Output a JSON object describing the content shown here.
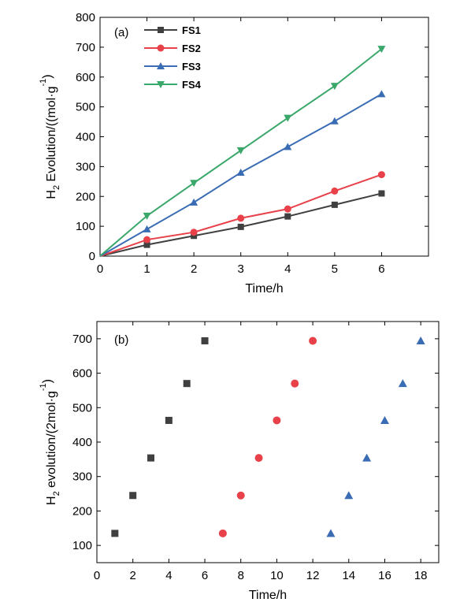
{
  "chart_data": [
    {
      "panel_label": "(a)",
      "type": "line",
      "xlabel": "Time/h",
      "ylabel_prefix": "H",
      "ylabel_sub": "2",
      "ylabel_suffix": " Evolution/((mol·g",
      "ylabel_sup": "-1",
      "ylabel_end": ")",
      "xlim": [
        0,
        7
      ],
      "ylim": [
        0,
        800
      ],
      "xticks": [
        "0",
        "1",
        "2",
        "3",
        "4",
        "5",
        "6"
      ],
      "yticks": [
        "0",
        "100",
        "200",
        "300",
        "400",
        "500",
        "600",
        "700",
        "800"
      ],
      "legend_position": "top-left",
      "x": [
        0,
        1,
        2,
        3,
        4,
        5,
        6
      ],
      "series": [
        {
          "name": "FS1",
          "marker": "square",
          "color": "#404040",
          "values": [
            0,
            38,
            68,
            98,
            133,
            172,
            210
          ]
        },
        {
          "name": "FS2",
          "marker": "circle",
          "color": "#e8414a",
          "values": [
            0,
            55,
            80,
            127,
            158,
            218,
            273
          ]
        },
        {
          "name": "FS3",
          "marker": "triangle-up",
          "color": "#3a6cb4",
          "values": [
            0,
            90,
            180,
            280,
            366,
            452,
            543
          ]
        },
        {
          "name": "FS4",
          "marker": "triangle-down",
          "color": "#3aa86a",
          "values": [
            0,
            135,
            245,
            354,
            463,
            570,
            694
          ]
        }
      ]
    },
    {
      "panel_label": "(b)",
      "type": "scatter",
      "xlabel": "Time/h",
      "ylabel_prefix": "H",
      "ylabel_sub": "2",
      "ylabel_suffix": " evolution/(2mol·g",
      "ylabel_sup": "-1",
      "ylabel_end": ")",
      "xlim": [
        0,
        19
      ],
      "ylim": [
        50,
        750
      ],
      "xticks": [
        "0",
        "2",
        "4",
        "6",
        "8",
        "10",
        "12",
        "14",
        "16",
        "18"
      ],
      "yticks": [
        "100",
        "200",
        "300",
        "400",
        "500",
        "600",
        "700"
      ],
      "series": [
        {
          "marker": "square",
          "color": "#404040",
          "x": [
            1,
            2,
            3,
            4,
            5,
            6
          ],
          "values": [
            135,
            245,
            354,
            463,
            570,
            694
          ]
        },
        {
          "marker": "circle",
          "color": "#e8414a",
          "x": [
            7,
            8,
            9,
            10,
            11,
            12
          ],
          "values": [
            135,
            245,
            354,
            463,
            570,
            694
          ]
        },
        {
          "marker": "triangle-up",
          "color": "#3a6cb4",
          "x": [
            13,
            14,
            15,
            16,
            17,
            18
          ],
          "values": [
            135,
            245,
            354,
            463,
            570,
            694
          ]
        }
      ]
    }
  ]
}
